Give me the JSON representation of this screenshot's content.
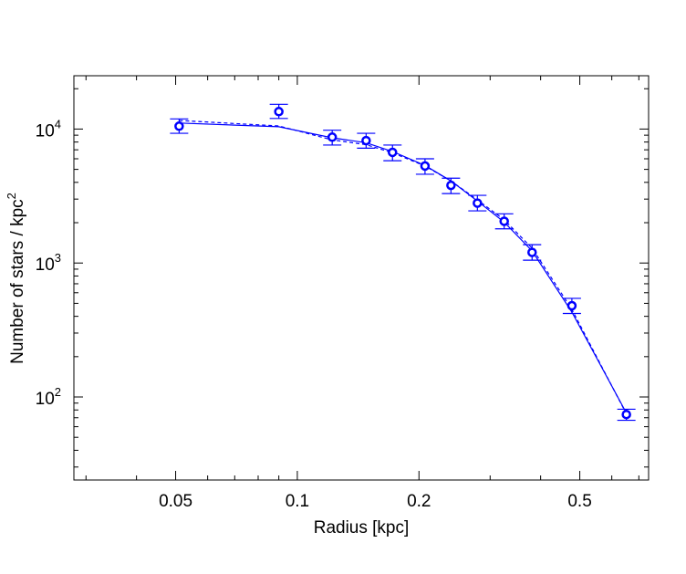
{
  "chart_data": {
    "type": "scatter",
    "xlabel": "Radius [kpc]",
    "ylabel_main": "Number of stars / kpc",
    "ylabel_sup": "2",
    "xscale": "log",
    "yscale": "log",
    "xlim": [
      0.028,
      0.74
    ],
    "ylim": [
      24,
      25000
    ],
    "grid": false,
    "x_tick_labels": [
      {
        "value": 0.05,
        "label": "0.05"
      },
      {
        "value": 0.1,
        "label": "0.1"
      },
      {
        "value": 0.2,
        "label": "0.2"
      },
      {
        "value": 0.5,
        "label": "0.5"
      }
    ],
    "y_tick_labels": [
      {
        "value": 100,
        "base": "10",
        "exp": "2"
      },
      {
        "value": 1000,
        "base": "10",
        "exp": "3"
      },
      {
        "value": 10000,
        "base": "10",
        "exp": "4"
      }
    ],
    "x_minor_ticks": [
      0.03,
      0.04,
      0.06,
      0.07,
      0.08,
      0.09,
      0.3,
      0.4,
      0.6,
      0.7
    ],
    "y_minor_ticks": [
      30,
      40,
      50,
      60,
      70,
      80,
      90,
      200,
      300,
      400,
      500,
      600,
      700,
      800,
      900,
      2000,
      3000,
      4000,
      5000,
      6000,
      7000,
      8000,
      9000,
      20000
    ],
    "points": {
      "color": "#0000ff",
      "x": [
        0.051,
        0.09,
        0.122,
        0.148,
        0.172,
        0.207,
        0.24,
        0.279,
        0.325,
        0.381,
        0.478,
        0.652
      ],
      "y": [
        10500,
        13500,
        8700,
        8200,
        6700,
        5300,
        3800,
        2800,
        2050,
        1200,
        480,
        74
      ],
      "ylow": [
        9300,
        12000,
        7600,
        7200,
        5800,
        4600,
        3300,
        2450,
        1800,
        1050,
        420,
        67
      ],
      "yhigh": [
        11900,
        15300,
        9800,
        9300,
        7600,
        6000,
        4300,
        3200,
        2330,
        1370,
        545,
        81
      ]
    },
    "series": [
      {
        "style": "solid",
        "color": "#0000ff",
        "x": [
          0.051,
          0.09,
          0.122,
          0.148,
          0.172,
          0.207,
          0.24,
          0.279,
          0.325,
          0.381,
          0.478,
          0.652
        ],
        "y": [
          11100,
          10400,
          8600,
          7900,
          6800,
          5350,
          4100,
          2900,
          2020,
          1230,
          430,
          76
        ]
      },
      {
        "style": "dashed",
        "color": "#0000ff",
        "x": [
          0.051,
          0.09,
          0.122,
          0.148,
          0.172,
          0.207,
          0.24,
          0.279,
          0.325,
          0.381,
          0.478,
          0.652
        ],
        "y": [
          11600,
          10550,
          8300,
          7650,
          6650,
          5300,
          4100,
          2960,
          2100,
          1290,
          450,
          75
        ]
      }
    ]
  }
}
